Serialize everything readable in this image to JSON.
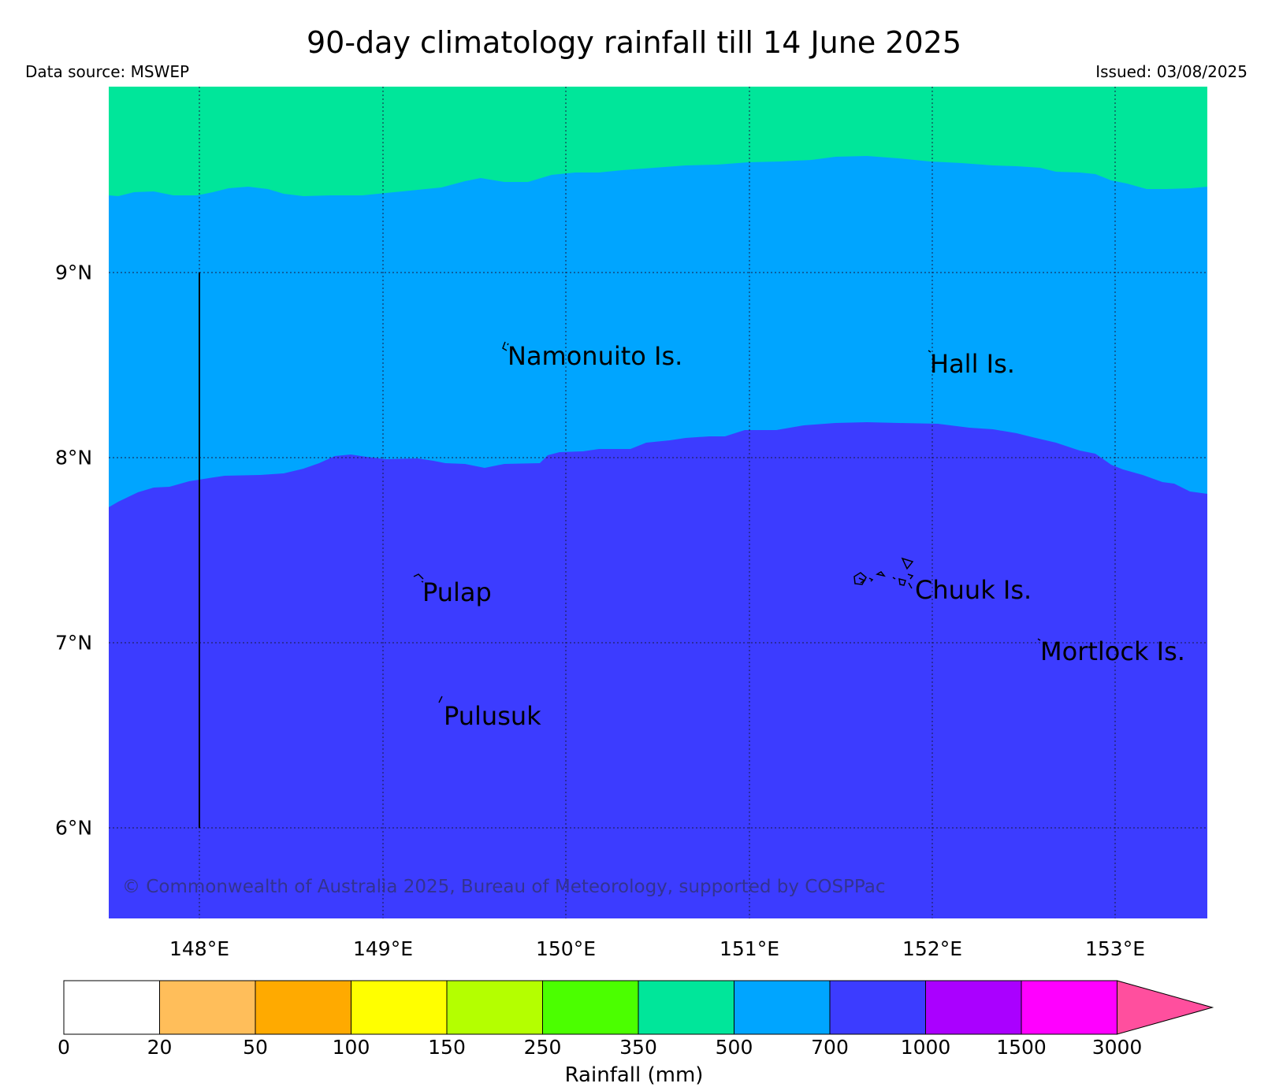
{
  "title": "90-day climatology rainfall till 14 June 2025",
  "source": "Data source: MSWEP",
  "issued": "Issued: 03/08/2025",
  "copyright": "© Commonwealth of Australia 2025, Bureau of Meteorology, supported by COSPPac",
  "map": {
    "lat_labels": [
      "9°N",
      "8°N",
      "7°N",
      "6°N"
    ],
    "lon_labels": [
      "148°E",
      "149°E",
      "150°E",
      "151°E",
      "152°E",
      "153°E"
    ],
    "lat_range": [
      5.5,
      10.0
    ],
    "lon_range": [
      147.5,
      153.5
    ],
    "grid": "dotted",
    "places": [
      {
        "name": "Namonuito Is."
      },
      {
        "name": "Hall Is."
      },
      {
        "name": "Pulap"
      },
      {
        "name": "Chuuk Is."
      },
      {
        "name": "Mortlock Is."
      },
      {
        "name": "Pulusuk"
      }
    ],
    "zones": [
      {
        "range": "350-500",
        "color": "#00e69a"
      },
      {
        "range": "500-700",
        "color": "#00a5ff"
      },
      {
        "range": "700-1000",
        "color": "#3c3cff"
      }
    ]
  },
  "colorbar": {
    "label": "Rainfall (mm)",
    "ticks": [
      "0",
      "20",
      "50",
      "100",
      "150",
      "250",
      "350",
      "500",
      "700",
      "1000",
      "1500",
      "3000"
    ],
    "colors": [
      "#ffffff",
      "#ffbe5a",
      "#ffaa00",
      "#ffff00",
      "#b4ff00",
      "#4bff00",
      "#00e69a",
      "#00a5ff",
      "#3c3cff",
      "#aa00ff",
      "#ff00ff"
    ],
    "extend_color": "#ff4f9e"
  }
}
